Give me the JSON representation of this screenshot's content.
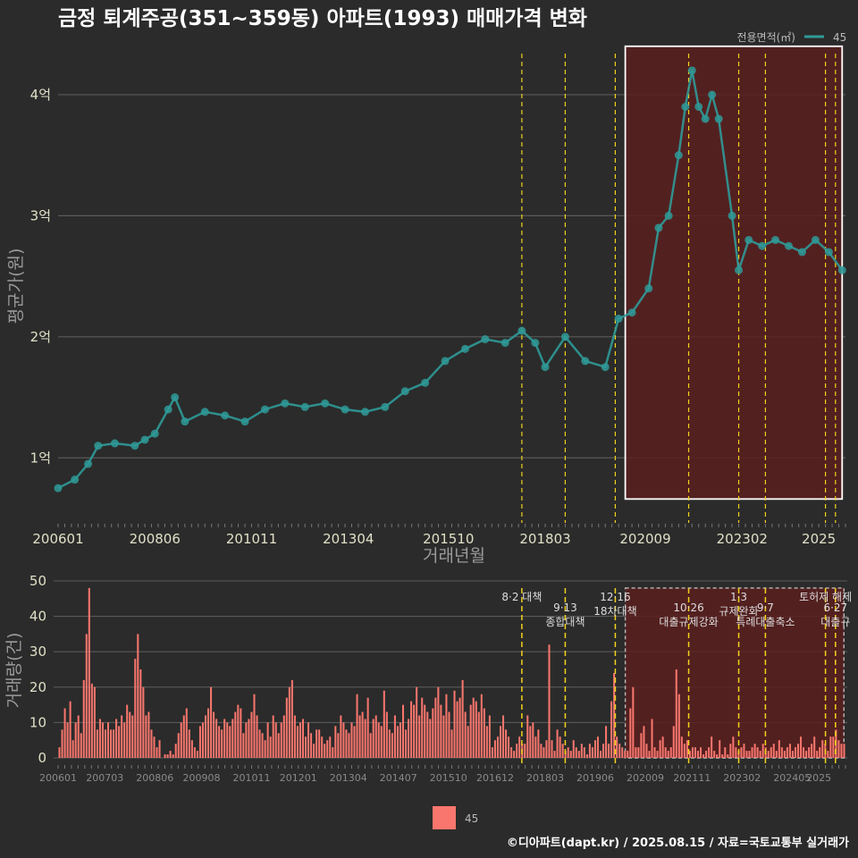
{
  "title": "금정 퇴계주공(351~359동) 아파트(1993) 매매가격 변화",
  "credit": "©디아파트(dapt.kr) / 2025.08.15 / 자료=국토교통부 실거래가",
  "colors": {
    "background": "#2b2b2b",
    "price_series": "#2f9a98",
    "volume_bar": "#f8766d",
    "policy_line": "#f2d21b",
    "highlight_fill": "#5a1f1f",
    "grid": "#5a5a5a"
  },
  "chart_data": [
    {
      "type": "scatter",
      "ylabel": "평균가(원)",
      "xlabel": "거래년월",
      "legend": {
        "title": "전용면적(㎡)",
        "entries": [
          "45"
        ],
        "position": "top-right"
      },
      "x_tick_labels": [
        "200601",
        "200806",
        "201011",
        "201304",
        "201510",
        "201803",
        "202009",
        "202302",
        "2025"
      ],
      "y_tick_labels": [
        "1억",
        "2억",
        "3억",
        "4억"
      ],
      "y_ticks": [
        1,
        2,
        3,
        4
      ],
      "ylim": [
        0.5,
        4.45
      ],
      "xlim": [
        "2006-01",
        "2025-08"
      ],
      "grid": true,
      "highlight_box": {
        "x_start": "2020-03",
        "x_end": "2025-08",
        "y_start": 0.66,
        "y_end": 4.4
      },
      "vlines": [
        "2017-08",
        "2018-09",
        "2019-12",
        "2021-10",
        "2023-01",
        "2023-09",
        "2025-03",
        "2025-06"
      ],
      "series": [
        {
          "name": "45",
          "points": [
            [
              "2006-01",
              0.75
            ],
            [
              "2006-06",
              0.82
            ],
            [
              "2006-10",
              0.95
            ],
            [
              "2007-01",
              1.1
            ],
            [
              "2007-06",
              1.12
            ],
            [
              "2007-12",
              1.1
            ],
            [
              "2008-03",
              1.15
            ],
            [
              "2008-06",
              1.2
            ],
            [
              "2008-10",
              1.4
            ],
            [
              "2008-12",
              1.5
            ],
            [
              "2009-03",
              1.3
            ],
            [
              "2009-09",
              1.38
            ],
            [
              "2010-03",
              1.35
            ],
            [
              "2010-09",
              1.3
            ],
            [
              "2011-03",
              1.4
            ],
            [
              "2011-09",
              1.45
            ],
            [
              "2012-03",
              1.42
            ],
            [
              "2012-09",
              1.45
            ],
            [
              "2013-03",
              1.4
            ],
            [
              "2013-09",
              1.38
            ],
            [
              "2014-03",
              1.42
            ],
            [
              "2014-09",
              1.55
            ],
            [
              "2015-03",
              1.62
            ],
            [
              "2015-09",
              1.8
            ],
            [
              "2016-03",
              1.9
            ],
            [
              "2016-09",
              1.98
            ],
            [
              "2017-03",
              1.95
            ],
            [
              "2017-08",
              2.05
            ],
            [
              "2017-12",
              1.95
            ],
            [
              "2018-03",
              1.75
            ],
            [
              "2018-09",
              2.0
            ],
            [
              "2019-03",
              1.8
            ],
            [
              "2019-09",
              1.75
            ],
            [
              "2020-01",
              2.15
            ],
            [
              "2020-05",
              2.2
            ],
            [
              "2020-10",
              2.4
            ],
            [
              "2021-01",
              2.9
            ],
            [
              "2021-04",
              3.0
            ],
            [
              "2021-07",
              3.5
            ],
            [
              "2021-09",
              3.9
            ],
            [
              "2021-11",
              4.2
            ],
            [
              "2022-01",
              3.9
            ],
            [
              "2022-03",
              3.8
            ],
            [
              "2022-05",
              4.0
            ],
            [
              "2022-07",
              3.8
            ],
            [
              "2022-11",
              3.0
            ],
            [
              "2023-01",
              2.55
            ],
            [
              "2023-04",
              2.8
            ],
            [
              "2023-08",
              2.75
            ],
            [
              "2023-12",
              2.8
            ],
            [
              "2024-04",
              2.75
            ],
            [
              "2024-08",
              2.7
            ],
            [
              "2024-12",
              2.8
            ],
            [
              "2025-04",
              2.7
            ],
            [
              "2025-08",
              2.55
            ]
          ]
        }
      ]
    },
    {
      "type": "bar",
      "ylabel": "거래량(건)",
      "legend": {
        "entries": [
          "45"
        ],
        "position": "bottom"
      },
      "x_tick_labels": [
        "200601",
        "200703",
        "200806",
        "200908",
        "201011",
        "201201",
        "201304",
        "201407",
        "201510",
        "201612",
        "201803",
        "201906",
        "202009",
        "202111",
        "202302",
        "202405",
        "2025"
      ],
      "y_tick_labels": [
        "0",
        "10",
        "20",
        "30",
        "40",
        "50"
      ],
      "ylim": [
        0,
        50
      ],
      "grid": true,
      "highlight_box": {
        "x_start": "2020-03",
        "x_end": "2025-08",
        "y_start": 0,
        "y_end": 48
      },
      "vlines": [
        "2017-08",
        "2018-09",
        "2019-12",
        "2021-10",
        "2023-01",
        "2023-09",
        "2025-03",
        "2025-06"
      ],
      "annotations": [
        {
          "x": "2017-08",
          "lines": [
            "8·2 대책"
          ]
        },
        {
          "x": "2018-09",
          "lines": [
            "9·13",
            "종합대책"
          ]
        },
        {
          "x": "2019-12",
          "lines": [
            "12·16",
            "18차대책"
          ]
        },
        {
          "x": "2021-10",
          "lines": [
            "10·26",
            "대출규제강화"
          ]
        },
        {
          "x": "2023-01",
          "lines": [
            "1·3",
            "규제완화"
          ]
        },
        {
          "x": "2023-09",
          "lines": [
            "9·7",
            "특례대출축소"
          ]
        },
        {
          "x": "2025-03",
          "lines": [
            "토허제 해제"
          ]
        },
        {
          "x": "2025-06",
          "lines": [
            "6·27",
            "대출규"
          ]
        }
      ],
      "series": [
        {
          "name": "45",
          "values": [
            3,
            8,
            14,
            10,
            16,
            5,
            10,
            12,
            7,
            22,
            35,
            48,
            21,
            20,
            8,
            11,
            10,
            8,
            10,
            8,
            8,
            11,
            9,
            12,
            10,
            15,
            13,
            12,
            28,
            35,
            25,
            20,
            12,
            13,
            8,
            6,
            3,
            5,
            0,
            1,
            1,
            2,
            1,
            4,
            7,
            10,
            12,
            14,
            8,
            5,
            3,
            2,
            9,
            10,
            12,
            14,
            20,
            13,
            11,
            9,
            8,
            11,
            10,
            9,
            11,
            13,
            15,
            14,
            7,
            10,
            11,
            13,
            18,
            12,
            8,
            7,
            5,
            10,
            6,
            12,
            10,
            7,
            10,
            12,
            17,
            20,
            22,
            12,
            9,
            10,
            11,
            6,
            10,
            7,
            4,
            8,
            8,
            6,
            4,
            5,
            6,
            3,
            9,
            7,
            12,
            10,
            8,
            7,
            10,
            9,
            18,
            12,
            13,
            11,
            17,
            7,
            11,
            12,
            10,
            9,
            19,
            13,
            8,
            7,
            12,
            9,
            10,
            15,
            8,
            11,
            16,
            15,
            20,
            12,
            17,
            15,
            13,
            11,
            14,
            17,
            20,
            15,
            12,
            18,
            13,
            8,
            19,
            16,
            17,
            22,
            13,
            9,
            15,
            17,
            16,
            13,
            18,
            14,
            9,
            12,
            3,
            5,
            6,
            9,
            12,
            8,
            6,
            3,
            2,
            4,
            6,
            4,
            4,
            12,
            9,
            10,
            6,
            8,
            4,
            3,
            5,
            32,
            5,
            2,
            8,
            6,
            4,
            2,
            3,
            2,
            5,
            3,
            2,
            4,
            3,
            1,
            4,
            3,
            5,
            6,
            2,
            4,
            9,
            4,
            16,
            24,
            6,
            4,
            3,
            2,
            2,
            14,
            20,
            3,
            3,
            7,
            9,
            4,
            2,
            11,
            3,
            2,
            5,
            6,
            3,
            2,
            3,
            9,
            25,
            18,
            6,
            4,
            5,
            2,
            3,
            3,
            2,
            3,
            1,
            2,
            3,
            6,
            2,
            1,
            5,
            1,
            3,
            1,
            4,
            6,
            3,
            2,
            3,
            4,
            2,
            2,
            3,
            4,
            3,
            2,
            4,
            3,
            2,
            3,
            4,
            2,
            5,
            3,
            2,
            3,
            4,
            2,
            3,
            4,
            6,
            3,
            2,
            3,
            4,
            6,
            2,
            3,
            5,
            4,
            2,
            6,
            6,
            8,
            5,
            4,
            4
          ]
        }
      ]
    }
  ]
}
